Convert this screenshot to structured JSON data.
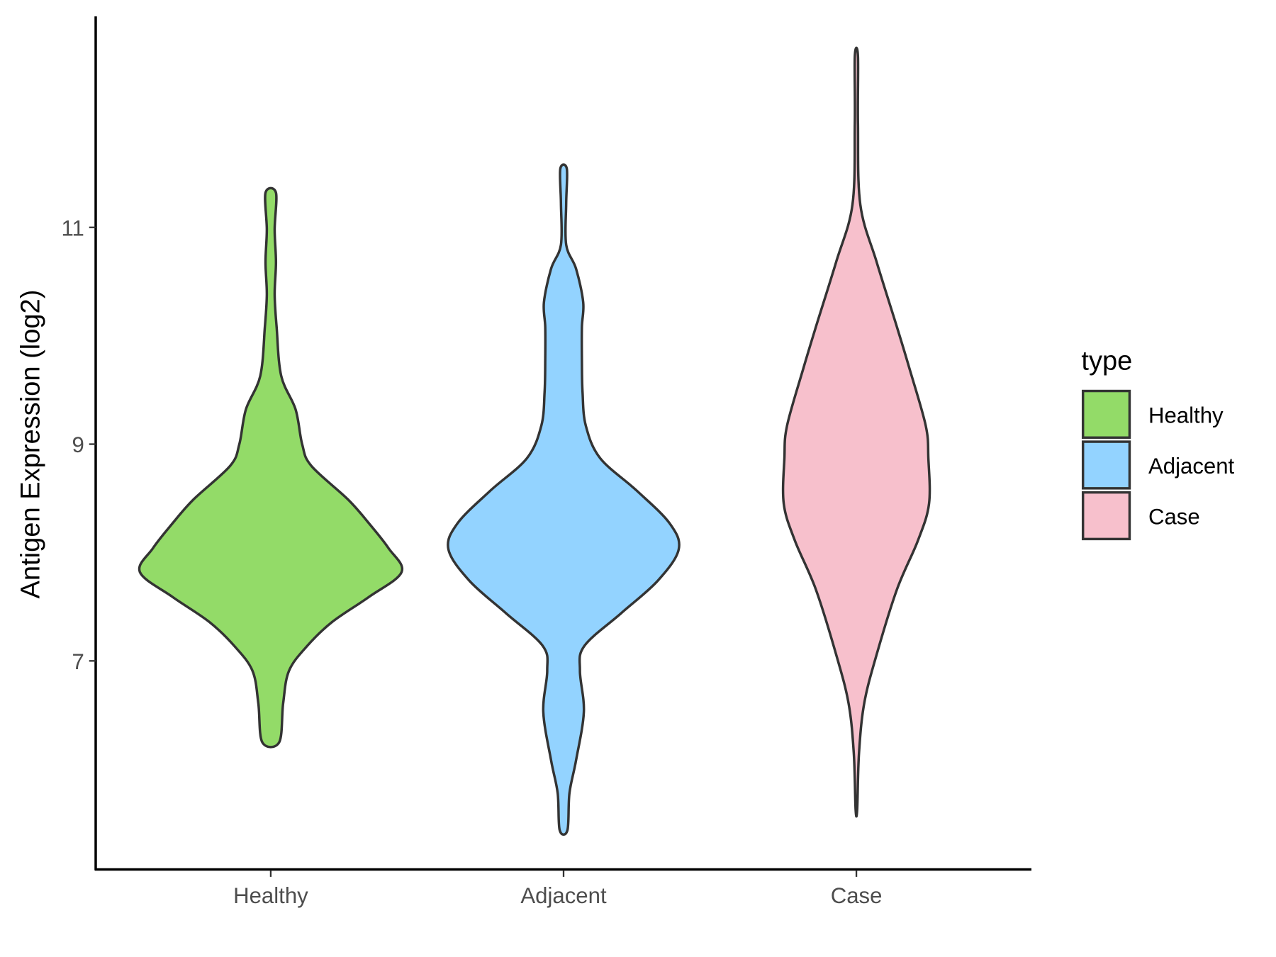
{
  "chart_data": {
    "type": "violin",
    "title": "",
    "xlabel": "",
    "ylabel": "Antigen Expression (log2)",
    "categories": [
      "Healthy",
      "Adjacent",
      "Case"
    ],
    "yticks": [
      7,
      9,
      11
    ],
    "ytick_labels": [
      "7",
      "9",
      "11"
    ],
    "ylim": [
      5.2,
      12.9
    ],
    "grid": false,
    "legend": {
      "title": "type",
      "position": "right",
      "entries": [
        "Healthy",
        "Adjacent",
        "Case"
      ]
    },
    "colors": {
      "Healthy": "#93DB68",
      "Adjacent": "#93D3FF",
      "Case": "#F7C0CC",
      "outline": "#333333"
    },
    "series": [
      {
        "name": "Healthy",
        "profile": [
          [
            11.32,
            0.04
          ],
          [
            10.98,
            0.03
          ],
          [
            10.68,
            0.04
          ],
          [
            10.38,
            0.03
          ],
          [
            10.08,
            0.045
          ],
          [
            9.63,
            0.08
          ],
          [
            9.32,
            0.19
          ],
          [
            9.0,
            0.24
          ],
          [
            8.8,
            0.31
          ],
          [
            8.49,
            0.59
          ],
          [
            8.27,
            0.75
          ],
          [
            8.04,
            0.9
          ],
          [
            7.82,
            1.0
          ],
          [
            7.59,
            0.75
          ],
          [
            7.36,
            0.47
          ],
          [
            7.14,
            0.28
          ],
          [
            6.91,
            0.14
          ],
          [
            6.61,
            0.095
          ],
          [
            6.25,
            0.065
          ]
        ]
      },
      {
        "name": "Adjacent",
        "profile": [
          [
            11.54,
            0.025
          ],
          [
            11.22,
            0.02
          ],
          [
            10.84,
            0.02
          ],
          [
            10.62,
            0.095
          ],
          [
            10.31,
            0.15
          ],
          [
            10.08,
            0.14
          ],
          [
            9.78,
            0.14
          ],
          [
            9.48,
            0.145
          ],
          [
            9.17,
            0.17
          ],
          [
            8.87,
            0.28
          ],
          [
            8.57,
            0.56
          ],
          [
            8.27,
            0.81
          ],
          [
            8.03,
            0.88
          ],
          [
            7.74,
            0.72
          ],
          [
            7.44,
            0.44
          ],
          [
            7.14,
            0.16
          ],
          [
            6.91,
            0.125
          ],
          [
            6.53,
            0.155
          ],
          [
            6.08,
            0.095
          ],
          [
            5.78,
            0.045
          ],
          [
            5.44,
            0.03
          ]
        ]
      },
      {
        "name": "Case",
        "profile": [
          [
            12.58,
            0.012
          ],
          [
            11.96,
            0.012
          ],
          [
            11.21,
            0.03
          ],
          [
            10.68,
            0.155
          ],
          [
            10.08,
            0.31
          ],
          [
            9.7,
            0.405
          ],
          [
            9.17,
            0.53
          ],
          [
            8.87,
            0.55
          ],
          [
            8.45,
            0.555
          ],
          [
            8.11,
            0.47
          ],
          [
            7.66,
            0.31
          ],
          [
            7.06,
            0.155
          ],
          [
            6.61,
            0.06
          ],
          [
            6.15,
            0.02
          ],
          [
            5.63,
            0.006
          ]
        ]
      }
    ]
  }
}
